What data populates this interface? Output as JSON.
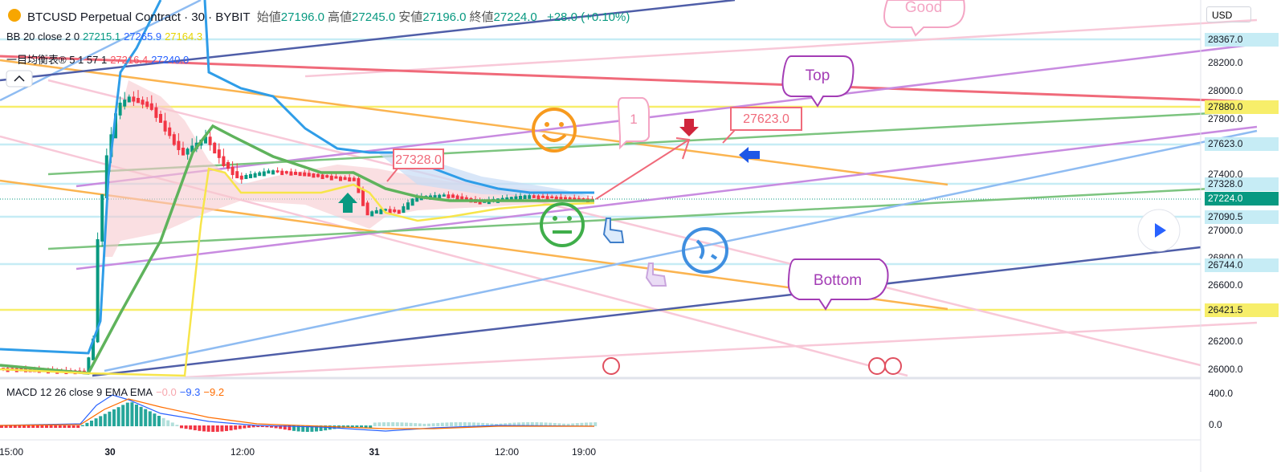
{
  "header": {
    "symbol": "BTCUSD Perpetual Contract · 30 · BYBIT",
    "ohlc": [
      {
        "label": "始値",
        "value": "27196.0"
      },
      {
        "label": "高値",
        "value": "27245.0"
      },
      {
        "label": "安値",
        "value": "27196.0"
      },
      {
        "label": "終値",
        "value": "27224.0"
      }
    ],
    "change": "+28.0 (+0.10%)"
  },
  "indicators": [
    {
      "name": "BB 20 close 2 0",
      "values": [
        "27215.1",
        "27265.9",
        "27164.3"
      ]
    },
    {
      "name": "一目均衡表® 5 1 57 1",
      "values": [
        "27216.4",
        "27240.0"
      ]
    }
  ],
  "price_axis": {
    "currency": "USD",
    "labels": [
      "28367.0",
      "28200.0",
      "28000.0",
      "27880.0",
      "27800.0",
      "27623.0",
      "27400.0",
      "27328.0",
      "27224.0",
      "27090.5",
      "27000.0",
      "26800.0",
      "26744.0",
      "26600.0",
      "26421.5",
      "26200.0",
      "26000.0"
    ]
  },
  "macd": {
    "name": "MACD 12 26 close 9 EMA EMA",
    "values": [
      "−0.0",
      "−9.3",
      "−9.2"
    ],
    "axis": [
      "400.0",
      "0.0"
    ]
  },
  "time_axis": [
    "15:00",
    "30",
    "12:00",
    "31",
    "12:00",
    "19:00"
  ],
  "annotations": {
    "good": "Good",
    "top": "Top",
    "one": "1",
    "price_a": "27623.0",
    "price_b": "27328.0",
    "bottom": "Bottom"
  }
}
